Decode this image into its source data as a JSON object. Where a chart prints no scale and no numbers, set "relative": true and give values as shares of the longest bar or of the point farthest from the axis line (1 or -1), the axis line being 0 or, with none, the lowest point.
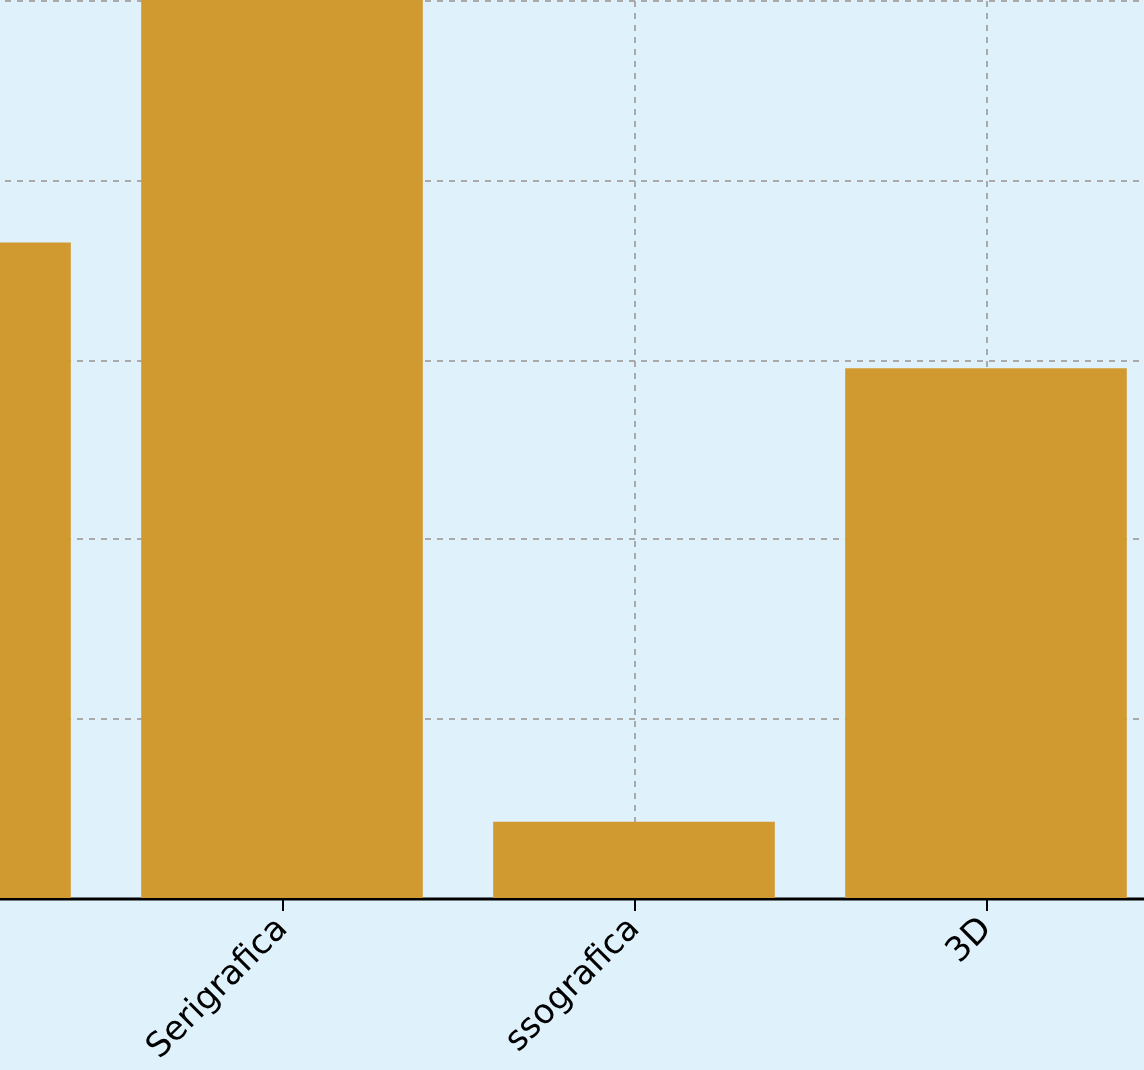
{
  "chart_data": {
    "type": "bar",
    "categories": [
      null,
      "Serigrafica",
      "ssografica",
      "3D"
    ],
    "values": [
      0.73,
      1,
      0.085,
      0.59
    ],
    "color": "#d09a30",
    "relative": true,
    "grid": true
  }
}
